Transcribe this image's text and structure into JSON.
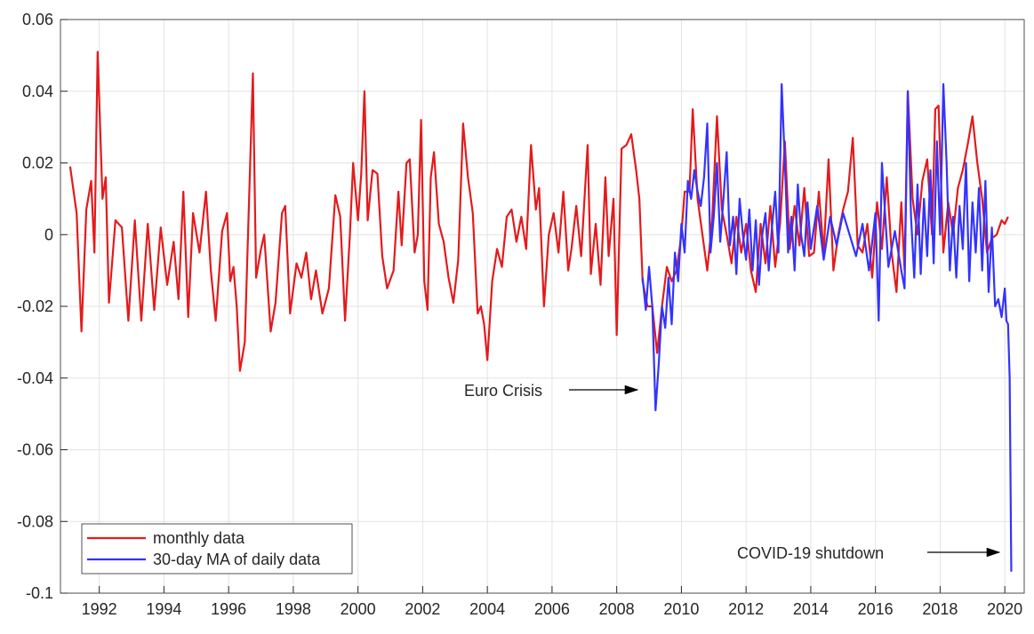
{
  "chart_data": {
    "type": "line",
    "xlim": [
      1990.8,
      2020.6
    ],
    "ylim": [
      -0.1,
      0.06
    ],
    "xticks": [
      1992,
      1994,
      1996,
      1998,
      2000,
      2002,
      2004,
      2006,
      2008,
      2010,
      2012,
      2014,
      2016,
      2018,
      2020
    ],
    "yticks": [
      -0.1,
      -0.08,
      -0.06,
      -0.04,
      -0.02,
      0,
      0.02,
      0.04,
      0.06
    ],
    "grid": true,
    "legend": "lower left",
    "annotations": [
      {
        "text": "Euro Crisis"
      },
      {
        "text": "COVID-19 shutdown"
      }
    ],
    "series": [
      {
        "name": "monthly data",
        "color": "#e41a1c",
        "x": [
          1991.1,
          1991.3,
          1991.45,
          1991.6,
          1991.75,
          1991.85,
          1991.95,
          1992.1,
          1992.2,
          1992.3,
          1992.5,
          1992.7,
          1992.9,
          1993.1,
          1993.3,
          1993.5,
          1993.7,
          1993.9,
          1994.1,
          1994.3,
          1994.45,
          1994.6,
          1994.75,
          1994.9,
          1995.1,
          1995.3,
          1995.45,
          1995.6,
          1995.8,
          1995.95,
          1996.05,
          1996.15,
          1996.25,
          1996.35,
          1996.5,
          1996.6,
          1996.75,
          1996.85,
          1997.0,
          1997.1,
          1997.3,
          1997.45,
          1997.65,
          1997.75,
          1997.9,
          1998.1,
          1998.25,
          1998.4,
          1998.55,
          1998.7,
          1998.9,
          1999.1,
          1999.3,
          1999.45,
          1999.6,
          1999.75,
          1999.85,
          2000.0,
          2000.1,
          2000.2,
          2000.3,
          2000.45,
          2000.6,
          2000.75,
          2000.9,
          2001.1,
          2001.25,
          2001.35,
          2001.5,
          2001.6,
          2001.75,
          2001.85,
          2001.95,
          2002.05,
          2002.15,
          2002.25,
          2002.35,
          2002.5,
          2002.65,
          2002.8,
          2002.95,
          2003.1,
          2003.25,
          2003.4,
          2003.55,
          2003.7,
          2003.8,
          2003.9,
          2004.0,
          2004.15,
          2004.3,
          2004.45,
          2004.6,
          2004.75,
          2004.9,
          2005.05,
          2005.2,
          2005.35,
          2005.5,
          2005.6,
          2005.75,
          2005.9,
          2006.05,
          2006.2,
          2006.35,
          2006.5,
          2006.6,
          2006.75,
          2006.9,
          2007.1,
          2007.2,
          2007.35,
          2007.5,
          2007.65,
          2007.75,
          2007.9,
          2008.0,
          2008.15,
          2008.3,
          2008.45,
          2008.6,
          2008.7,
          2008.8,
          2008.95,
          2009.1,
          2009.25,
          2009.4,
          2009.55,
          2009.7,
          2009.85,
          2010.0,
          2010.1,
          2010.25,
          2010.35,
          2010.5,
          2010.65,
          2010.8,
          2010.95,
          2011.1,
          2011.25,
          2011.4,
          2011.55,
          2011.7,
          2011.85,
          2012.0,
          2012.15,
          2012.3,
          2012.45,
          2012.6,
          2012.75,
          2012.9,
          2013.05,
          2013.2,
          2013.35,
          2013.5,
          2013.65,
          2013.8,
          2013.95,
          2014.1,
          2014.25,
          2014.4,
          2014.55,
          2014.7,
          2014.85,
          2015.0,
          2015.15,
          2015.3,
          2015.45,
          2015.6,
          2015.75,
          2015.9,
          2016.05,
          2016.2,
          2016.35,
          2016.5,
          2016.65,
          2016.8,
          2016.9,
          2017.0,
          2017.15,
          2017.3,
          2017.45,
          2017.6,
          2017.75,
          2017.85,
          2017.95,
          2018.1,
          2018.25,
          2018.4,
          2018.55,
          2018.7,
          2018.85,
          2019.0,
          2019.15,
          2019.3,
          2019.45,
          2019.6,
          2019.75,
          2019.9,
          2020.0,
          2020.1
        ],
        "values": [
          0.019,
          0.006,
          -0.027,
          0.007,
          0.015,
          -0.005,
          0.051,
          0.01,
          0.016,
          -0.019,
          0.004,
          0.002,
          -0.024,
          0.004,
          -0.024,
          0.003,
          -0.021,
          0.002,
          -0.014,
          -0.002,
          -0.018,
          0.012,
          -0.023,
          0.006,
          -0.005,
          0.012,
          -0.01,
          -0.024,
          0.001,
          0.006,
          -0.013,
          -0.009,
          -0.02,
          -0.038,
          -0.03,
          0.0,
          0.045,
          -0.012,
          -0.004,
          0.0,
          -0.027,
          -0.019,
          0.006,
          0.008,
          -0.022,
          -0.008,
          -0.012,
          -0.005,
          -0.018,
          -0.01,
          -0.022,
          -0.015,
          0.011,
          0.005,
          -0.024,
          0.0,
          0.02,
          0.004,
          0.017,
          0.04,
          0.004,
          0.018,
          0.017,
          -0.006,
          -0.015,
          -0.01,
          0.012,
          -0.003,
          0.02,
          0.021,
          -0.005,
          0.0,
          0.032,
          -0.013,
          -0.021,
          0.016,
          0.023,
          0.003,
          -0.002,
          -0.012,
          -0.019,
          -0.007,
          0.031,
          0.016,
          0.006,
          -0.022,
          -0.02,
          -0.025,
          -0.035,
          -0.013,
          -0.004,
          -0.009,
          0.005,
          0.007,
          -0.002,
          0.005,
          -0.004,
          0.025,
          0.007,
          0.013,
          -0.02,
          0.0,
          0.006,
          -0.005,
          0.012,
          -0.01,
          -0.004,
          0.008,
          -0.006,
          0.025,
          -0.011,
          0.003,
          -0.014,
          0.016,
          -0.006,
          0.01,
          -0.028,
          0.024,
          0.025,
          0.028,
          0.018,
          0.01,
          -0.013,
          -0.02,
          -0.02,
          -0.033,
          -0.02,
          -0.009,
          -0.013,
          -0.01,
          0.0,
          0.012,
          0.012,
          0.035,
          0.01,
          0.0,
          -0.01,
          0.004,
          0.033,
          0.007,
          0.0,
          -0.008,
          0.005,
          -0.005,
          0.003,
          -0.01,
          -0.016,
          0.003,
          -0.008,
          0.008,
          -0.009,
          0.003,
          0.026,
          -0.004,
          0.008,
          -0.003,
          0.013,
          -0.006,
          -0.005,
          0.012,
          -0.005,
          0.021,
          -0.01,
          0.0,
          0.007,
          0.012,
          0.027,
          -0.003,
          -0.005,
          0.003,
          -0.012,
          0.009,
          -0.004,
          0.016,
          -0.005,
          -0.016,
          0.009,
          -0.01,
          0.04,
          0.01,
          0.0,
          0.015,
          0.021,
          0.0,
          0.035,
          0.036,
          -0.005,
          0.009,
          0.0,
          0.013,
          0.018,
          0.025,
          0.033,
          0.02,
          0.01,
          -0.005,
          -0.001,
          0.0,
          0.004,
          0.003,
          0.005
        ]
      },
      {
        "name": "30-day MA of daily data",
        "color": "#3333ff",
        "x": [
          2008.8,
          2008.9,
          2009.0,
          2009.1,
          2009.2,
          2009.3,
          2009.4,
          2009.5,
          2009.6,
          2009.7,
          2009.8,
          2009.9,
          2010.0,
          2010.1,
          2010.2,
          2010.3,
          2010.4,
          2010.5,
          2010.6,
          2010.7,
          2010.8,
          2010.9,
          2011.0,
          2011.1,
          2011.2,
          2011.3,
          2011.4,
          2011.5,
          2011.6,
          2011.7,
          2011.8,
          2011.9,
          2012.0,
          2012.1,
          2012.2,
          2012.3,
          2012.4,
          2012.5,
          2012.6,
          2012.7,
          2012.8,
          2012.9,
          2013.0,
          2013.1,
          2013.2,
          2013.3,
          2013.4,
          2013.5,
          2013.6,
          2013.7,
          2013.8,
          2013.9,
          2014.0,
          2014.2,
          2014.4,
          2014.6,
          2014.8,
          2015.0,
          2015.2,
          2015.4,
          2015.6,
          2015.8,
          2016.0,
          2016.1,
          2016.2,
          2016.4,
          2016.6,
          2016.8,
          2016.9,
          2017.0,
          2017.1,
          2017.2,
          2017.3,
          2017.4,
          2017.5,
          2017.6,
          2017.7,
          2017.8,
          2017.9,
          2018.0,
          2018.1,
          2018.2,
          2018.3,
          2018.4,
          2018.5,
          2018.6,
          2018.7,
          2018.8,
          2018.9,
          2019.0,
          2019.1,
          2019.2,
          2019.3,
          2019.4,
          2019.5,
          2019.6,
          2019.7,
          2019.8,
          2019.9,
          2020.0,
          2020.05,
          2020.1,
          2020.15,
          2020.2
        ],
        "values": [
          -0.012,
          -0.021,
          -0.009,
          -0.02,
          -0.049,
          -0.036,
          -0.02,
          -0.026,
          -0.012,
          -0.025,
          -0.005,
          -0.013,
          0.003,
          -0.005,
          0.015,
          0.01,
          0.018,
          0.012,
          0.008,
          0.016,
          0.031,
          -0.005,
          0.005,
          0.02,
          -0.002,
          0.01,
          0.023,
          -0.003,
          0.005,
          -0.011,
          0.01,
          0.0,
          -0.007,
          0.007,
          -0.01,
          0.004,
          -0.014,
          0.0,
          0.006,
          -0.01,
          0.002,
          0.012,
          -0.005,
          0.042,
          0.02,
          -0.005,
          0.005,
          -0.01,
          0.014,
          0.0,
          -0.006,
          0.009,
          -0.004,
          0.008,
          -0.007,
          0.005,
          -0.003,
          0.006,
          0.0,
          -0.006,
          0.003,
          -0.01,
          0.006,
          -0.024,
          0.02,
          -0.009,
          0.001,
          -0.01,
          -0.015,
          0.04,
          0.005,
          -0.012,
          0.014,
          -0.011,
          0.01,
          -0.006,
          0.018,
          -0.008,
          0.026,
          0.0,
          0.042,
          0.02,
          -0.01,
          0.005,
          -0.012,
          0.008,
          -0.004,
          0.02,
          -0.013,
          0.009,
          -0.005,
          0.013,
          -0.01,
          0.015,
          -0.016,
          0.002,
          -0.02,
          -0.018,
          -0.023,
          -0.015,
          -0.024,
          -0.025,
          -0.04,
          -0.094
        ]
      }
    ]
  }
}
